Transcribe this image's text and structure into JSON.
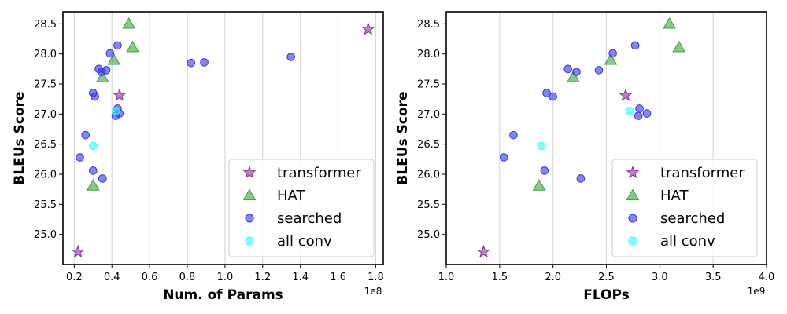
{
  "chart_data": [
    {
      "type": "scatter",
      "xlabel": "Num. of Params",
      "ylabel": "BLEUs Score",
      "x_offset_label": "1e8",
      "xlim": [
        0.14,
        1.84
      ],
      "ylim": [
        24.5,
        28.7
      ],
      "xticks": [
        0.2,
        0.4,
        0.6,
        0.8,
        1.0,
        1.2,
        1.4,
        1.6,
        1.8
      ],
      "xtick_labels": [
        "0.2",
        "0.4",
        "0.6",
        "0.8",
        "1.0",
        "1.2",
        "1.4",
        "1.6",
        "1.8"
      ],
      "yticks": [
        25.0,
        25.5,
        26.0,
        26.5,
        27.0,
        27.5,
        28.0,
        28.5
      ],
      "ytick_labels": [
        "25.0",
        "25.5",
        "26.0",
        "26.5",
        "27.0",
        "27.5",
        "28.0",
        "28.5"
      ],
      "grid": "vertical",
      "legend_position": "bottom-right",
      "series": [
        {
          "name": "transformer",
          "marker": "star",
          "color": "#8b2fa0",
          "points": [
            [
              0.22,
              24.71
            ],
            [
              0.44,
              27.31
            ],
            [
              1.76,
              28.41
            ]
          ]
        },
        {
          "name": "HAT",
          "marker": "triangle",
          "color": "#3ca33c",
          "points": [
            [
              0.3,
              25.81
            ],
            [
              0.35,
              27.61
            ],
            [
              0.41,
              27.9
            ],
            [
              0.49,
              28.5
            ],
            [
              0.51,
              28.11
            ]
          ]
        },
        {
          "name": "searched",
          "marker": "circle",
          "color": "#3333ee",
          "points": [
            [
              0.23,
              26.28
            ],
            [
              0.26,
              26.65
            ],
            [
              0.3,
              26.06
            ],
            [
              0.3,
              27.35
            ],
            [
              0.31,
              27.29
            ],
            [
              0.33,
              27.75
            ],
            [
              0.345,
              27.7
            ],
            [
              0.35,
              25.93
            ],
            [
              0.37,
              27.73
            ],
            [
              0.39,
              28.01
            ],
            [
              0.42,
              26.97
            ],
            [
              0.43,
              27.09
            ],
            [
              0.43,
              28.14
            ],
            [
              0.44,
              27.01
            ],
            [
              0.82,
              27.85
            ],
            [
              0.89,
              27.86
            ],
            [
              1.35,
              27.95
            ]
          ]
        },
        {
          "name": "all conv",
          "marker": "circle",
          "color": "#33ffff",
          "points": [
            [
              0.3,
              26.47
            ],
            [
              0.42,
              27.05
            ]
          ]
        }
      ]
    },
    {
      "type": "scatter",
      "xlabel": "FLOPs",
      "ylabel": "BLEUs Score",
      "x_offset_label": "1e9",
      "xlim": [
        1.0,
        4.0
      ],
      "ylim": [
        24.5,
        28.7
      ],
      "xticks": [
        1.0,
        1.5,
        2.0,
        2.5,
        3.0,
        3.5,
        4.0
      ],
      "xtick_labels": [
        "1.0",
        "1.5",
        "2.0",
        "2.5",
        "3.0",
        "3.5",
        "4.0"
      ],
      "yticks": [
        25.0,
        25.5,
        26.0,
        26.5,
        27.0,
        27.5,
        28.0,
        28.5
      ],
      "ytick_labels": [
        "25.0",
        "25.5",
        "26.0",
        "26.5",
        "27.0",
        "27.5",
        "28.0",
        "28.5"
      ],
      "grid": "vertical",
      "legend_position": "bottom-right",
      "series": [
        {
          "name": "transformer",
          "marker": "star",
          "color": "#8b2fa0",
          "points": [
            [
              1.35,
              24.71
            ],
            [
              2.68,
              27.31
            ]
          ]
        },
        {
          "name": "HAT",
          "marker": "triangle",
          "color": "#3ca33c",
          "points": [
            [
              1.87,
              25.81
            ],
            [
              2.19,
              27.61
            ],
            [
              2.54,
              27.9
            ],
            [
              3.09,
              28.5
            ],
            [
              3.18,
              28.11
            ]
          ]
        },
        {
          "name": "searched",
          "marker": "circle",
          "color": "#3333ee",
          "points": [
            [
              1.54,
              26.28
            ],
            [
              1.63,
              26.65
            ],
            [
              1.92,
              26.06
            ],
            [
              1.94,
              27.35
            ],
            [
              2.0,
              27.29
            ],
            [
              2.14,
              27.75
            ],
            [
              2.22,
              27.7
            ],
            [
              2.26,
              25.93
            ],
            [
              2.43,
              27.73
            ],
            [
              2.56,
              28.01
            ],
            [
              2.77,
              28.14
            ],
            [
              2.8,
              26.97
            ],
            [
              2.81,
              27.09
            ],
            [
              2.88,
              27.01
            ]
          ]
        },
        {
          "name": "all conv",
          "marker": "circle",
          "color": "#33ffff",
          "points": [
            [
              1.89,
              26.47
            ],
            [
              2.72,
              27.05
            ]
          ]
        }
      ]
    }
  ]
}
